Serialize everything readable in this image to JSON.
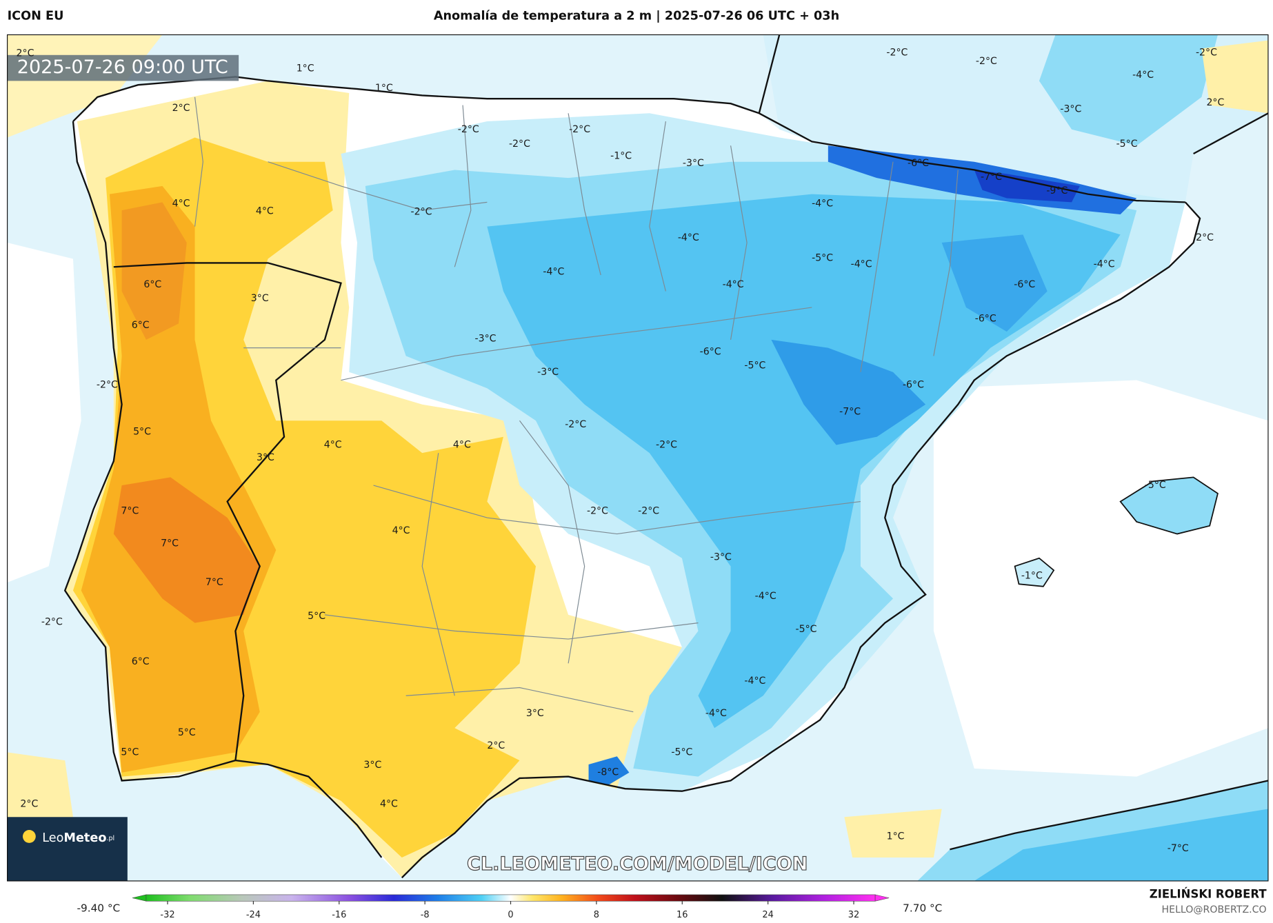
{
  "header": {
    "model": "ICON EU",
    "title": "Anomalía de temperatura a 2 m | 2025-07-26 06 UTC + 03h"
  },
  "map": {
    "valid_time": "2025-07-26 09:00 UTC",
    "contour_labels": [
      "2°C",
      "1°C",
      "1°C",
      "2°C",
      "-2°C",
      "-2°C",
      "-2°C",
      "-1°C",
      "-3°C",
      "-2°C",
      "-2°C",
      "-2°C",
      "-4°C",
      "-3°C",
      "2°C",
      "-5°C",
      "-6°C",
      "-7°C",
      "-9°C",
      "4°C",
      "4°C",
      "-2°C",
      "-4°C",
      "2°C",
      "-4°C",
      "-5°C",
      "-4°C",
      "-4°C",
      "-4°C",
      "6°C",
      "-4°C",
      "-6°C",
      "3°C",
      "6°C",
      "-6°C",
      "-3°C",
      "-6°C",
      "-5°C",
      "-3°C",
      "-2°C",
      "-6°C",
      "-7°C",
      "-2°C",
      "5°C",
      "4°C",
      "4°C",
      "-2°C",
      "3°C",
      "-5°C",
      "7°C",
      "-2°C",
      "-2°C",
      "4°C",
      "7°C",
      "-3°C",
      "-1°C",
      "7°C",
      "-4°C",
      "5°C",
      "-2°C",
      "-5°C",
      "6°C",
      "-4°C",
      "3°C",
      "-4°C",
      "5°C",
      "2°C",
      "5°C",
      "-5°C",
      "3°C",
      "-8°C",
      "4°C",
      "2°C",
      "1°C",
      "-7°C"
    ],
    "watermark": "CL.LEOMETEO.COM/MODEL/ICON",
    "logo": {
      "name": "Leo",
      "name_bold": "Meteo",
      "suffix": ".pl"
    }
  },
  "colorbar": {
    "min_label": "-9.40 °C",
    "max_label": "7.70 °C",
    "lim": [
      -34,
      34
    ],
    "ticks": [
      -32,
      -24,
      -16,
      -8,
      0,
      8,
      16,
      24,
      32
    ]
  },
  "footer": {
    "author": "ZIELIŃSKI ROBERT",
    "email": "HELLO@ROBERTZ.CO"
  }
}
